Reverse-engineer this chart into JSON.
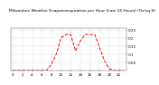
{
  "title": "Milwaukee Weather Evapotranspiration per Hour (Last 24 Hours) (Oz/sq ft)",
  "hours": [
    0,
    1,
    2,
    3,
    4,
    5,
    6,
    7,
    8,
    9,
    10,
    11,
    12,
    13,
    14,
    15,
    16,
    17,
    18,
    19,
    20,
    21,
    22,
    23
  ],
  "values": [
    0,
    0,
    0,
    0,
    0,
    0,
    0,
    0,
    0.04,
    0.1,
    0.2,
    0.22,
    0.22,
    0.12,
    0.18,
    0.22,
    0.22,
    0.22,
    0.14,
    0.06,
    0.01,
    0,
    0,
    0
  ],
  "line_color": "#FF0000",
  "line_style": "--",
  "line_width": 0.7,
  "grid_color": "#aaaaaa",
  "grid_style": ":",
  "background_color": "#ffffff",
  "ylim": [
    0,
    0.26
  ],
  "yticks": [
    0.05,
    0.1,
    0.15,
    0.2,
    0.25
  ],
  "ytick_labels": [
    "0.05",
    "0.1",
    "0.15",
    "0.2",
    "0.25"
  ],
  "xticks": [
    0,
    2,
    4,
    6,
    8,
    10,
    12,
    14,
    16,
    18,
    20,
    22
  ],
  "xtick_labels": [
    "0",
    "2",
    "4",
    "6",
    "8",
    "10",
    "12",
    "14",
    "16",
    "18",
    "20",
    "22"
  ],
  "tick_fontsize": 3,
  "title_fontsize": 3.2
}
